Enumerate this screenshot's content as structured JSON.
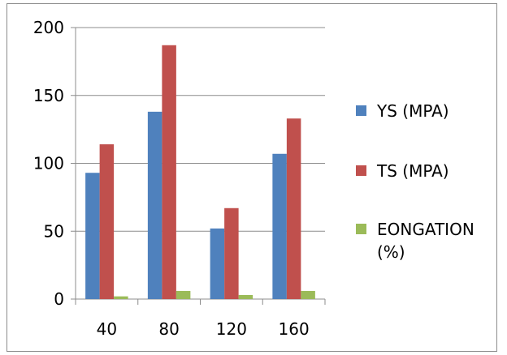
{
  "chart_data": {
    "type": "bar",
    "categories": [
      "40",
      "80",
      "120",
      "160"
    ],
    "series": [
      {
        "name": "YS (MPA)",
        "color": "#4f81bd",
        "values": [
          93,
          138,
          52,
          107
        ]
      },
      {
        "name": "TS (MPA)",
        "color": "#c0504d",
        "values": [
          114,
          187,
          67,
          133
        ]
      },
      {
        "name_lines": [
          "EONGATION",
          "(%)"
        ],
        "color": "#9bbb59",
        "values": [
          2,
          6,
          3,
          6
        ]
      }
    ],
    "y_ticks": [
      "0",
      "50",
      "100",
      "150",
      "200"
    ],
    "ylim": [
      0,
      200
    ],
    "grid": true,
    "legend_position": "right"
  }
}
